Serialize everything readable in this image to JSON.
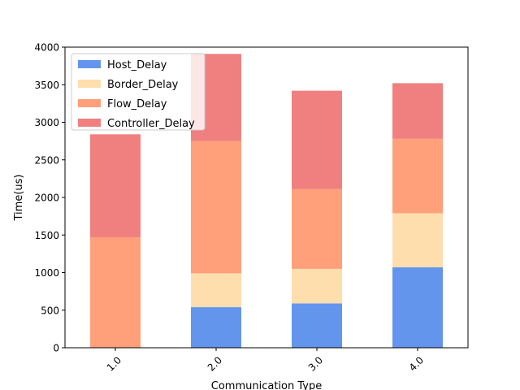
{
  "chart_data": {
    "type": "bar",
    "stacked": true,
    "title": "",
    "xlabel": "Communication Type",
    "ylabel": "Time(us)",
    "categories": [
      "1.0",
      "2.0",
      "3.0",
      "4.0"
    ],
    "ylim": [
      0,
      4000
    ],
    "yticks": [
      "0",
      "500",
      "1000",
      "1500",
      "2000",
      "2500",
      "3000",
      "3500",
      "4000"
    ],
    "grid": false,
    "legend_position": "top-left",
    "series": [
      {
        "name": "Host_Delay",
        "color": "#6495ED",
        "values": [
          0,
          540,
          590,
          1070
        ]
      },
      {
        "name": "Border_Delay",
        "color": "#FFDEAD",
        "values": [
          0,
          450,
          460,
          720
        ]
      },
      {
        "name": "Flow_Delay",
        "color": "#FFA07A",
        "values": [
          1470,
          1760,
          1060,
          990
        ]
      },
      {
        "name": "Controller_Delay",
        "color": "#F08080",
        "values": [
          1370,
          1160,
          1310,
          740
        ]
      }
    ]
  }
}
